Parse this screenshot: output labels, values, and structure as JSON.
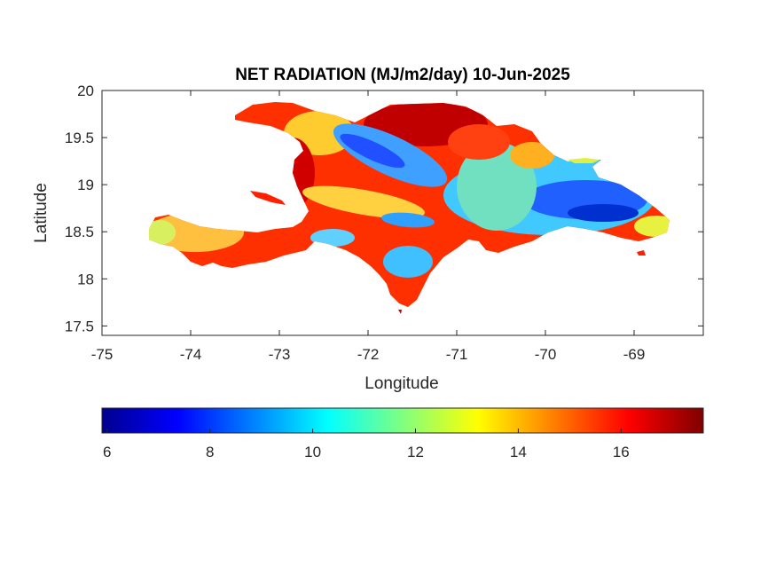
{
  "title": "NET RADIATION (MJ/m2/day) 10-Jun-2025",
  "map": {
    "xlabel": "Longitude",
    "ylabel": "Latitude",
    "xlim": [
      -75,
      -68.22
    ],
    "ylim": [
      17.4,
      20
    ],
    "xticks": [
      -75,
      -74,
      -73,
      -72,
      -71,
      -70,
      -69
    ],
    "xtick_labels": [
      "-75",
      "-74",
      "-73",
      "-72",
      "-71",
      "-70",
      "-69"
    ],
    "yticks": [
      17.5,
      18,
      18.5,
      19,
      19.5,
      20
    ],
    "ytick_labels": [
      "17.5",
      "18",
      "18.5",
      "19",
      "19.5",
      "20"
    ],
    "region": "Hispaniola",
    "colormap": "jet"
  },
  "colorbar": {
    "range": [
      5.9,
      17.6
    ],
    "ticks": [
      6,
      8,
      10,
      12,
      14,
      16
    ],
    "tick_labels": [
      "6",
      "8",
      "10",
      "12",
      "14",
      "16"
    ],
    "stops": [
      "#00008f",
      "#0000ff",
      "#0080ff",
      "#00ffff",
      "#80ff80",
      "#ffff00",
      "#ff8000",
      "#ff0000",
      "#800000"
    ]
  }
}
